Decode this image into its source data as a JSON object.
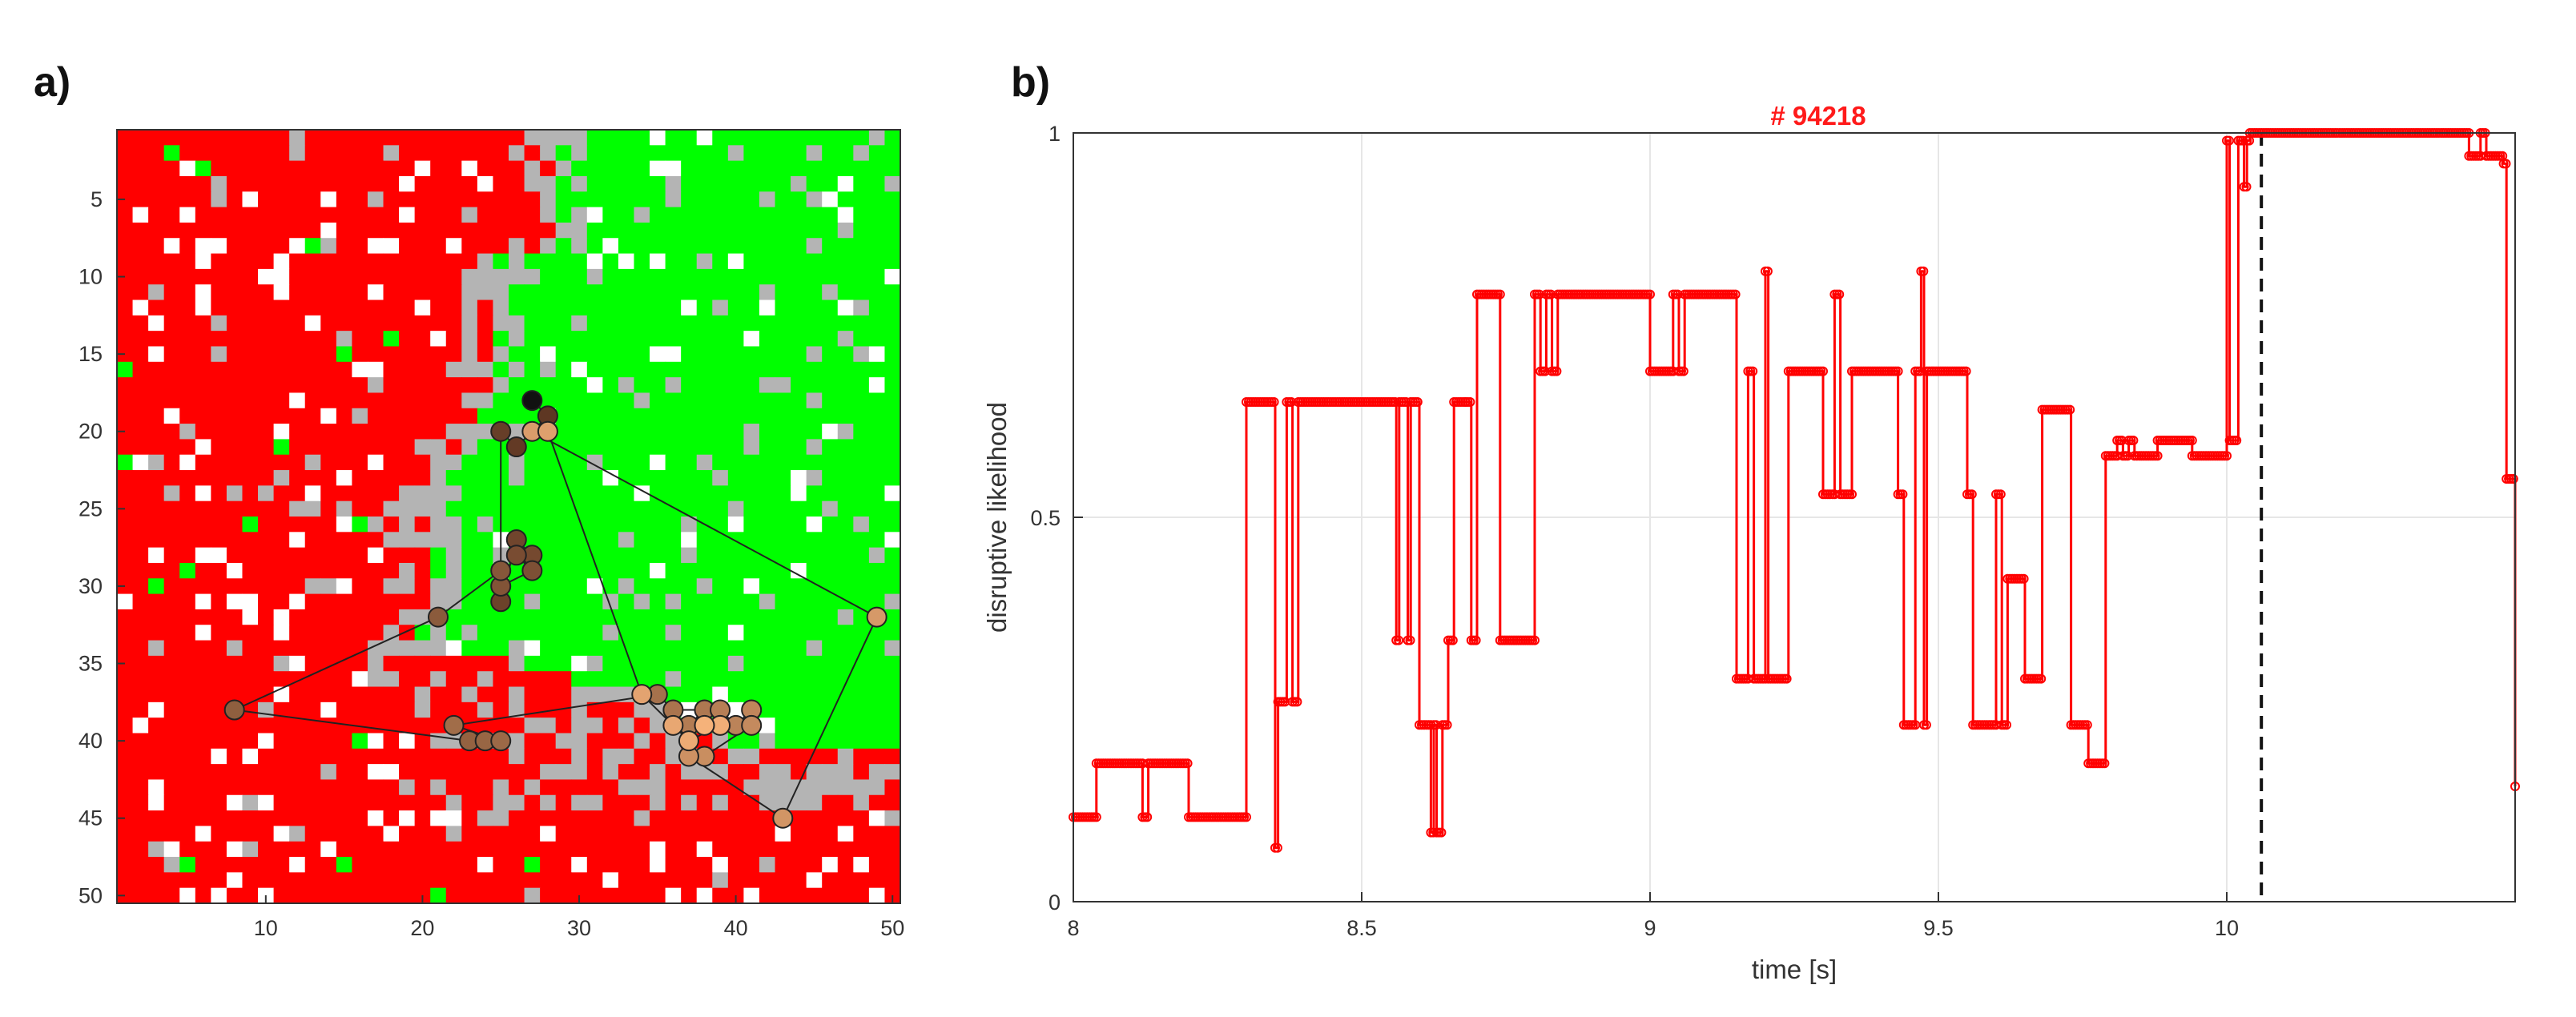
{
  "colors": {
    "disruptive": "#ff0000",
    "safe": "#00ff00",
    "uncertain": "#b4b4b4",
    "empty": "#ffffff",
    "trajectory_start": "#111111",
    "trajectory_end": "#f5b27a",
    "line_series": "#ff0000",
    "grid": "#e6e6e6"
  },
  "chart_data": [
    {
      "panel_label": "a)",
      "type": "heatmap",
      "title": "",
      "xlabel": "",
      "ylabel": "",
      "grid_size": [
        50,
        50
      ],
      "xlim": [
        0.5,
        50.5
      ],
      "ylim": [
        0.5,
        50.5
      ],
      "y_reversed": true,
      "xticks": [
        10,
        20,
        30,
        40,
        50
      ],
      "yticks": [
        5,
        10,
        15,
        20,
        25,
        30,
        35,
        40,
        45,
        50
      ],
      "cell_categories": [
        "disruptive (red)",
        "safe (green)",
        "uncertain (gray)",
        "empty (white)"
      ],
      "regions_description_note": "",
      "trajectory": {
        "x": [
          27,
          28,
          26,
          25,
          25,
          26,
          27,
          26,
          27,
          25,
          25,
          21,
          8,
          23,
          24,
          25,
          22,
          35,
          36,
          38,
          37,
          39,
          40,
          41,
          41,
          38,
          37,
          43,
          49,
          27,
          28,
          34,
          36,
          37,
          39,
          38
        ],
        "y": [
          18,
          19,
          21,
          20,
          31,
          27,
          28,
          28,
          29,
          30,
          29,
          32,
          38,
          40,
          40,
          40,
          39,
          37,
          38,
          38,
          39,
          38,
          39,
          38,
          39,
          41,
          41,
          45,
          32,
          20,
          20,
          37,
          39,
          40,
          39,
          39
        ]
      }
    },
    {
      "panel_label": "b)",
      "type": "line",
      "title": "# 94218",
      "xlabel": "time [s]",
      "ylabel": "disruptive likelihood",
      "xlim": [
        8.0,
        10.5
      ],
      "ylim": [
        0,
        1
      ],
      "xticks": [
        8,
        8.5,
        9,
        9.5,
        10
      ],
      "xtick_labels": [
        "8",
        "8.5",
        "9",
        "9.5",
        "10"
      ],
      "yticks": [
        0,
        0.5,
        1
      ],
      "ytick_labels": [
        "0",
        "0.5",
        "1"
      ],
      "grid": true,
      "vline": {
        "x": 10.06,
        "style": "dashed"
      },
      "series": [
        {
          "name": "disruptive likelihood",
          "steps": [
            [
              8.0,
              0.11
            ],
            [
              8.04,
              0.18
            ],
            [
              8.12,
              0.11
            ],
            [
              8.13,
              0.18
            ],
            [
              8.2,
              0.11
            ],
            [
              8.3,
              0.65
            ],
            [
              8.35,
              0.07
            ],
            [
              8.355,
              0.26
            ],
            [
              8.37,
              0.65
            ],
            [
              8.38,
              0.26
            ],
            [
              8.39,
              0.65
            ],
            [
              8.56,
              0.34
            ],
            [
              8.565,
              0.65
            ],
            [
              8.58,
              0.34
            ],
            [
              8.585,
              0.65
            ],
            [
              8.6,
              0.23
            ],
            [
              8.62,
              0.09
            ],
            [
              8.625,
              0.23
            ],
            [
              8.63,
              0.09
            ],
            [
              8.64,
              0.23
            ],
            [
              8.65,
              0.34
            ],
            [
              8.66,
              0.65
            ],
            [
              8.68,
              0.65
            ],
            [
              8.69,
              0.34
            ],
            [
              8.7,
              0.79
            ],
            [
              8.74,
              0.34
            ],
            [
              8.8,
              0.79
            ],
            [
              8.81,
              0.69
            ],
            [
              8.82,
              0.79
            ],
            [
              8.83,
              0.69
            ],
            [
              8.84,
              0.79
            ],
            [
              9.0,
              0.69
            ],
            [
              9.04,
              0.79
            ],
            [
              9.05,
              0.69
            ],
            [
              9.06,
              0.79
            ],
            [
              9.15,
              0.29
            ],
            [
              9.17,
              0.69
            ],
            [
              9.18,
              0.29
            ],
            [
              9.2,
              0.82
            ],
            [
              9.205,
              0.29
            ],
            [
              9.24,
              0.69
            ],
            [
              9.3,
              0.53
            ],
            [
              9.32,
              0.79
            ],
            [
              9.33,
              0.53
            ],
            [
              9.35,
              0.69
            ],
            [
              9.43,
              0.53
            ],
            [
              9.44,
              0.23
            ],
            [
              9.46,
              0.69
            ],
            [
              9.47,
              0.82
            ],
            [
              9.475,
              0.23
            ],
            [
              9.48,
              0.69
            ],
            [
              9.55,
              0.53
            ],
            [
              9.56,
              0.23
            ],
            [
              9.6,
              0.53
            ],
            [
              9.61,
              0.23
            ],
            [
              9.62,
              0.42
            ],
            [
              9.65,
              0.29
            ],
            [
              9.68,
              0.64
            ],
            [
              9.73,
              0.23
            ],
            [
              9.76,
              0.18
            ],
            [
              9.79,
              0.58
            ],
            [
              9.81,
              0.6
            ],
            [
              9.82,
              0.58
            ],
            [
              9.83,
              0.6
            ],
            [
              9.84,
              0.58
            ],
            [
              9.88,
              0.6
            ],
            [
              9.94,
              0.58
            ],
            [
              10.0,
              0.99
            ],
            [
              10.005,
              0.6
            ],
            [
              10.02,
              0.99
            ],
            [
              10.03,
              0.93
            ],
            [
              10.035,
              0.99
            ],
            [
              10.04,
              1.0
            ],
            [
              10.42,
              0.97
            ],
            [
              10.44,
              1.0
            ],
            [
              10.45,
              0.97
            ],
            [
              10.48,
              0.96
            ],
            [
              10.485,
              0.55
            ],
            [
              10.5,
              0.15
            ]
          ],
          "x_end": 10.5
        }
      ]
    }
  ]
}
